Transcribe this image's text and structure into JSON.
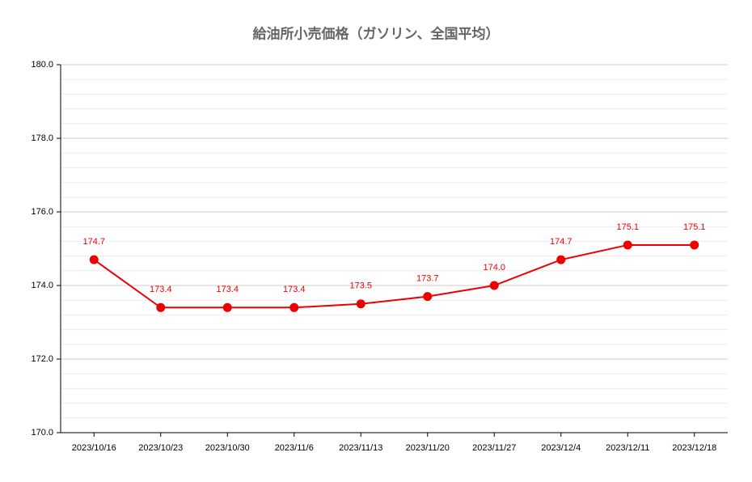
{
  "chart_data": {
    "type": "line",
    "title": "給油所小売価格（ガソリン、全国平均）",
    "categories": [
      "2023/10/16",
      "2023/10/23",
      "2023/10/30",
      "2023/11/6",
      "2023/11/13",
      "2023/11/20",
      "2023/11/27",
      "2023/12/4",
      "2023/12/11",
      "2023/12/18"
    ],
    "series": [
      {
        "name": "全国平均",
        "color": "#ee0000",
        "values": [
          174.7,
          173.4,
          173.4,
          173.4,
          173.5,
          173.7,
          174.0,
          174.7,
          175.1,
          175.1
        ],
        "value_labels": [
          "174.7",
          "173.4",
          "173.4",
          "173.4",
          "173.5",
          "173.7",
          "174.0",
          "174.7",
          "175.1",
          "175.1"
        ]
      }
    ],
    "ylim": [
      170,
      180
    ],
    "yticks": [
      {
        "value": 170,
        "label": "170.0"
      },
      {
        "value": 172,
        "label": "172.0"
      },
      {
        "value": 174,
        "label": "174.0"
      },
      {
        "value": 176,
        "label": "176.0"
      },
      {
        "value": 178,
        "label": "178.0"
      },
      {
        "value": 180,
        "label": "180.0"
      }
    ],
    "grid": true
  }
}
